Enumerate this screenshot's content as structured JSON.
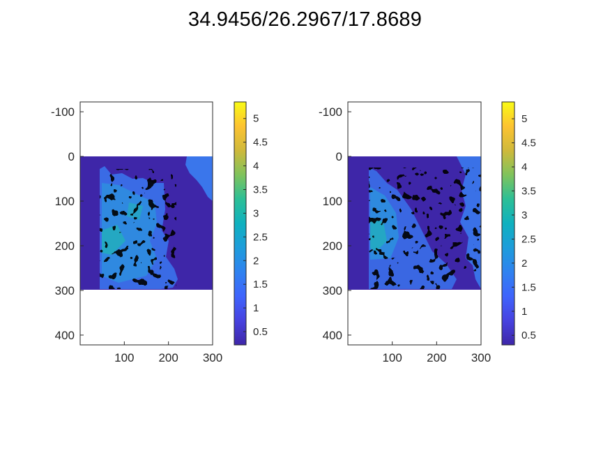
{
  "figure": {
    "title": "34.9456/26.2967/17.8689"
  },
  "chart_data": [
    {
      "type": "heatmap",
      "panel": "left",
      "x_ticks": [
        "100",
        "200",
        "300"
      ],
      "x_tick_values": [
        100,
        200,
        300
      ],
      "y_ticks": [
        "-100",
        "0",
        "100",
        "200",
        "300",
        "400"
      ],
      "y_tick_values": [
        -100,
        0,
        100,
        200,
        300,
        400
      ],
      "xlim": [
        0,
        300
      ],
      "ylim": [
        -122,
        422
      ],
      "y_direction": "reversed",
      "image_extent": {
        "x": [
          0,
          300
        ],
        "y": [
          0,
          300
        ]
      },
      "colormap": "parula",
      "colorbar": {
        "range": [
          0.22,
          5.35
        ],
        "ticks": [
          "0.5",
          "1",
          "1.5",
          "2",
          "2.5",
          "3",
          "3.5",
          "4",
          "4.5",
          "5"
        ],
        "tick_values": [
          0.5,
          1,
          1.5,
          2,
          2.5,
          3,
          3.5,
          4,
          4.5,
          5
        ]
      },
      "color_min": "#3e26a8",
      "color_max": "#f9fb15"
    },
    {
      "type": "heatmap",
      "panel": "right",
      "x_ticks": [
        "100",
        "200",
        "300"
      ],
      "x_tick_values": [
        100,
        200,
        300
      ],
      "y_ticks": [
        "-100",
        "0",
        "100",
        "200",
        "300",
        "400"
      ],
      "y_tick_values": [
        -100,
        0,
        100,
        200,
        300,
        400
      ],
      "xlim": [
        0,
        300
      ],
      "ylim": [
        -122,
        422
      ],
      "y_direction": "reversed",
      "image_extent": {
        "x": [
          0,
          300
        ],
        "y": [
          0,
          300
        ]
      },
      "colormap": "parula",
      "colorbar": {
        "range": [
          0.3,
          5.35
        ],
        "ticks": [
          "0.5",
          "1",
          "1.5",
          "2",
          "2.5",
          "3",
          "3.5",
          "4",
          "4.5",
          "5"
        ],
        "tick_values": [
          0.5,
          1,
          1.5,
          2,
          2.5,
          3,
          3.5,
          4,
          4.5,
          5
        ]
      },
      "color_min": "#3e26a8",
      "color_max": "#f9fb15"
    }
  ]
}
